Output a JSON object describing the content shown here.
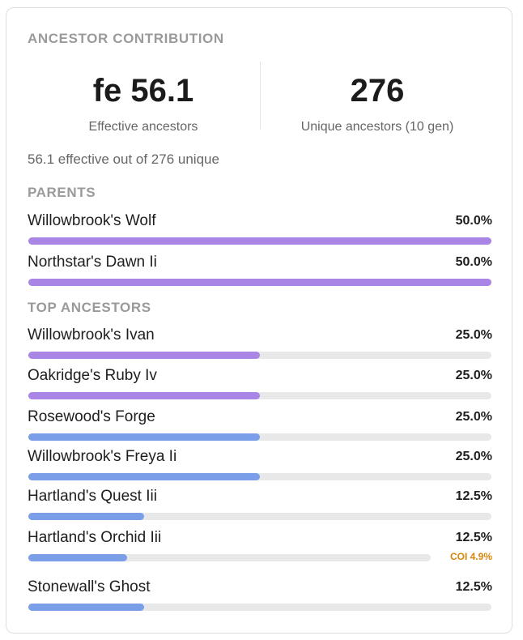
{
  "card": {
    "title": "ANCESTOR CONTRIBUTION",
    "effective": {
      "value": "fe 56.1",
      "label": "Effective ancestors"
    },
    "unique": {
      "value": "276",
      "label": "Unique ancestors (10 gen)"
    },
    "summary": "56.1 effective out of 276 unique"
  },
  "sections": {
    "parents_label": "PARENTS",
    "top_label": "TOP ANCESTORS"
  },
  "colors": {
    "purple": "#a986e6",
    "blue": "#7b9ee8",
    "track": "#e8e8e8",
    "coi": "#d8860b"
  },
  "parents": [
    {
      "name": "Willowbrook's Wolf",
      "percent": "50.0%",
      "value": 50.0,
      "color": "purple"
    },
    {
      "name": "Northstar's Dawn Ii",
      "percent": "50.0%",
      "value": 50.0,
      "color": "purple"
    }
  ],
  "ancestors": [
    {
      "name": "Willowbrook's Ivan",
      "percent": "25.0%",
      "value": 25.0,
      "color": "purple"
    },
    {
      "name": "Oakridge's Ruby Iv",
      "percent": "25.0%",
      "value": 25.0,
      "color": "purple"
    },
    {
      "name": "Rosewood's Forge",
      "percent": "25.0%",
      "value": 25.0,
      "color": "blue"
    },
    {
      "name": "Willowbrook's Freya Ii",
      "percent": "25.0%",
      "value": 25.0,
      "color": "blue"
    },
    {
      "name": "Hartland's Quest Iii",
      "percent": "12.5%",
      "value": 12.5,
      "color": "blue"
    },
    {
      "name": "Hartland's Orchid Iii",
      "percent": "12.5%",
      "value": 12.5,
      "color": "blue",
      "coi": "COI 4.9%"
    },
    {
      "name": "Stonewall's Ghost",
      "percent": "12.5%",
      "value": 12.5,
      "color": "blue"
    }
  ]
}
